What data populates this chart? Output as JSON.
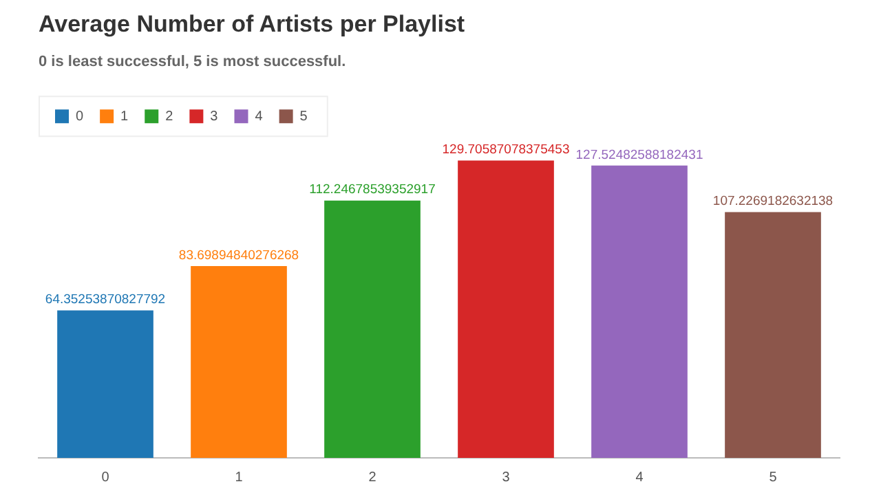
{
  "chart_data": {
    "type": "bar",
    "title": "Average Number of Artists per Playlist",
    "subtitle": "0 is least successful, 5 is most successful.",
    "categories": [
      "0",
      "1",
      "2",
      "3",
      "4",
      "5"
    ],
    "series": [
      {
        "name": "0",
        "color": "#1f77b4",
        "values": [
          64.35253870827792,
          null,
          null,
          null,
          null,
          null
        ]
      },
      {
        "name": "1",
        "color": "#ff7f0e",
        "values": [
          null,
          83.69894840276268,
          null,
          null,
          null,
          null
        ]
      },
      {
        "name": "2",
        "color": "#2ca02c",
        "values": [
          null,
          null,
          112.24678539352917,
          null,
          null,
          null
        ]
      },
      {
        "name": "3",
        "color": "#d62728",
        "values": [
          null,
          null,
          null,
          129.70587078375453,
          null,
          null
        ]
      },
      {
        "name": "4",
        "color": "#9467bd",
        "values": [
          null,
          null,
          null,
          null,
          127.52482588182431,
          null
        ]
      },
      {
        "name": "5",
        "color": "#8c564b",
        "values": [
          null,
          null,
          null,
          null,
          null,
          107.2269182632138
        ]
      }
    ],
    "tick_labels": "x",
    "data_labels": true,
    "legend": "top left",
    "grid": false
  }
}
